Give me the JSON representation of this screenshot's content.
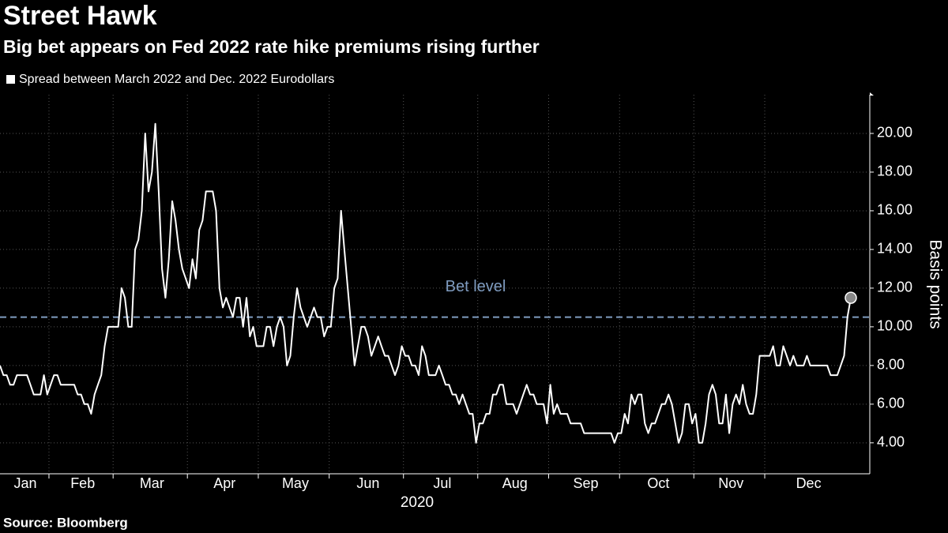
{
  "chart_data": {
    "type": "line",
    "title": "Street Hawk",
    "subtitle": "Big bet appears on Fed 2022 rate hike premiums rising further",
    "source": "Source: Bloomberg",
    "x_label": "2020",
    "y_label": "Basis points",
    "categories": [
      "Jan",
      null,
      null,
      null,
      null,
      null,
      null,
      null,
      null,
      null,
      null,
      null,
      null,
      null,
      null,
      "Feb",
      null,
      null,
      null,
      null,
      null,
      null,
      null,
      null,
      null,
      null,
      null,
      null,
      null,
      null,
      null,
      null,
      null,
      null,
      "Mar",
      null,
      null,
      null,
      null,
      null,
      null,
      null,
      null,
      null,
      null,
      null,
      null,
      null,
      null,
      null,
      null,
      null,
      null,
      null,
      null,
      null,
      "Apr",
      null,
      null,
      null,
      null,
      null,
      null,
      null,
      null,
      null,
      null,
      null,
      null,
      null,
      null,
      null,
      null,
      null,
      null,
      null,
      null,
      "May",
      null,
      null,
      null,
      null,
      null,
      null,
      null,
      null,
      null,
      null,
      null,
      null,
      null,
      null,
      null,
      null,
      null,
      null,
      null,
      null,
      "Jun",
      null,
      null,
      null,
      null,
      null,
      null,
      null,
      null,
      null,
      null,
      null,
      null,
      null,
      null,
      null,
      null,
      null,
      null,
      null,
      null,
      null,
      "Jul",
      null,
      null,
      null,
      null,
      null,
      null,
      null,
      null,
      null,
      null,
      null,
      null,
      null,
      null,
      null,
      null,
      null,
      null,
      null,
      null,
      null,
      "Aug",
      null,
      null,
      null,
      null,
      null,
      null,
      null,
      null,
      null,
      null,
      null,
      null,
      null,
      null,
      null,
      null,
      null,
      null,
      null,
      null,
      "Sep",
      null,
      null,
      null,
      null,
      null,
      null,
      null,
      null,
      null,
      null,
      null,
      null,
      null,
      null,
      null,
      null,
      null,
      null,
      null,
      null,
      "Oct",
      null,
      null,
      null,
      null,
      null,
      null,
      null,
      null,
      null,
      null,
      null,
      null,
      null,
      null,
      null,
      null,
      null,
      null,
      null,
      null,
      null,
      "Nov",
      null,
      null,
      null,
      null,
      null,
      null,
      null,
      null,
      null,
      null,
      null,
      null,
      null,
      null,
      null,
      null,
      null,
      null,
      null,
      null,
      "Dec",
      null,
      null,
      null,
      null,
      null,
      null,
      null,
      null,
      null,
      null,
      null,
      null,
      null,
      null,
      null,
      null,
      null,
      null,
      null,
      null,
      null,
      null,
      null,
      null,
      null
    ],
    "series": [
      {
        "name": "Spread between March 2022 and Dec. 2022 Eurodollars",
        "color": "#ffffff",
        "values": [
          8,
          7.5,
          7.5,
          7,
          7,
          7.5,
          7.5,
          7.5,
          7.5,
          7,
          6.5,
          6.5,
          6.5,
          7.5,
          6.5,
          7,
          7.5,
          7.5,
          7,
          7,
          7,
          7,
          7,
          6.5,
          6.5,
          6,
          6,
          5.5,
          6.5,
          7,
          7.5,
          9,
          10,
          10,
          10,
          10,
          12,
          11.5,
          10,
          10,
          14,
          14.5,
          16,
          20,
          17,
          18,
          20.5,
          17,
          13,
          11.5,
          13.5,
          16.5,
          15.5,
          14,
          13,
          12.5,
          12,
          13.5,
          12.5,
          15,
          15.5,
          17,
          17,
          17,
          16,
          12,
          11,
          11.5,
          11,
          10.5,
          11.5,
          11.5,
          10,
          11.5,
          9.5,
          10,
          9,
          9,
          9,
          10,
          10,
          9,
          10,
          10.5,
          10,
          8,
          8.5,
          10.5,
          12,
          11,
          10.5,
          10,
          10.5,
          11,
          10.5,
          10.5,
          9.5,
          10,
          10,
          12,
          12.5,
          16,
          14,
          12,
          10,
          8,
          9,
          10,
          10,
          9.5,
          8.5,
          9,
          9.5,
          9,
          8.5,
          8.5,
          8,
          7.5,
          8,
          9,
          8.5,
          8.5,
          8,
          8,
          7.5,
          9,
          8.5,
          7.5,
          7.5,
          7.5,
          8,
          7.5,
          7,
          7,
          6.5,
          6.5,
          6,
          6.5,
          6,
          5.5,
          5.5,
          4,
          5,
          5,
          5.5,
          5.5,
          6.5,
          6.5,
          7,
          7,
          6,
          6,
          6,
          5.5,
          6,
          6.5,
          7,
          6.5,
          6.5,
          6,
          6,
          6,
          5,
          7,
          5.5,
          6,
          5.5,
          5.5,
          5.5,
          5,
          5,
          5,
          5,
          4.5,
          4.5,
          4.5,
          4.5,
          4.5,
          4.5,
          4.5,
          4.5,
          4.5,
          4,
          4.5,
          4.5,
          5.5,
          5,
          6.5,
          6,
          6.5,
          6.5,
          5,
          4.5,
          5,
          5,
          5.5,
          6,
          6,
          6.5,
          6,
          5,
          4,
          4.5,
          6,
          6,
          5,
          5.5,
          4,
          4,
          5,
          6.5,
          7,
          6.5,
          5,
          5,
          6.5,
          4.5,
          6,
          6.5,
          6,
          7,
          6,
          5.5,
          5.5,
          6.5,
          8.5,
          8.5,
          8.5,
          8.5,
          9,
          8,
          8,
          9,
          8.5,
          8,
          8.5,
          8,
          8,
          8,
          8.5,
          8,
          8,
          8,
          8,
          8,
          8,
          7.5,
          7.5,
          7.5,
          8,
          8.5,
          10.5,
          11.5
        ]
      }
    ],
    "reference_line": {
      "value": 10.5,
      "label": "Bet level",
      "color": "#7f9cc0"
    },
    "ylim": [
      2.4,
      22
    ],
    "yticks": [
      {
        "value": 4,
        "label": "4.00"
      },
      {
        "value": 6,
        "label": "6.00"
      },
      {
        "value": 8,
        "label": "8.00"
      },
      {
        "value": 10,
        "label": "10.00"
      },
      {
        "value": 12,
        "label": "12.00"
      },
      {
        "value": 14,
        "label": "14.00"
      },
      {
        "value": 16,
        "label": "16.00"
      },
      {
        "value": 18,
        "label": "18.00"
      },
      {
        "value": 20,
        "label": "20.00"
      }
    ],
    "grid": true
  }
}
